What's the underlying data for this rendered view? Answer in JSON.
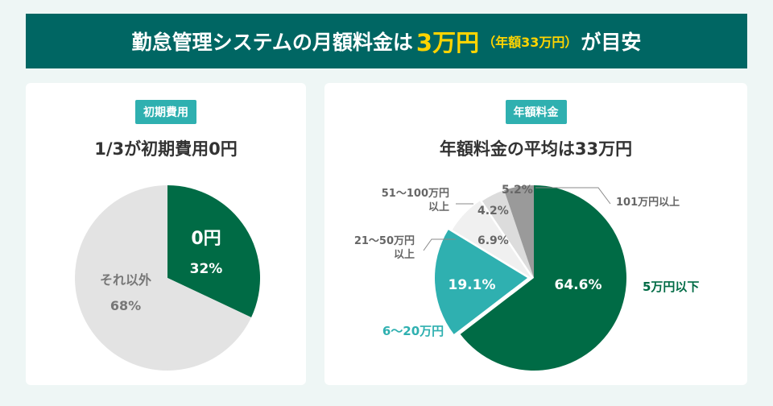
{
  "banner": {
    "pre": "勤怠管理システムの月額料金は",
    "highlight": "3万円",
    "sub": "（年額33万円）",
    "post": "が目安"
  },
  "colors": {
    "banner": "#006663",
    "badge": "#2fb0b0",
    "green": "#006b45",
    "teal": "#2fb0b0",
    "highlight": "#ffd400"
  },
  "chart_data": [
    {
      "type": "pie",
      "badge": "初期費用",
      "title": "1/3が初期費用0円",
      "slices": [
        {
          "label": "0円",
          "value": 32,
          "value_label": "32%",
          "color": "#006b45",
          "text_color": "#ffffff"
        },
        {
          "label": "それ以外",
          "value": 68,
          "value_label": "68%",
          "color": "#e3e3e3",
          "text_color": "#777777"
        }
      ]
    },
    {
      "type": "pie",
      "badge": "年額料金",
      "title": "年額料金の平均は33万円",
      "slices": [
        {
          "label": "5万円以下",
          "value": 64.6,
          "value_label": "64.6%",
          "color": "#006b45",
          "label_color": "#006b45"
        },
        {
          "label": "6～20万円",
          "value": 19.1,
          "value_label": "19.1%",
          "color": "#2fb0b0",
          "label_color": "#2fb0b0"
        },
        {
          "label": "21～50万円以上",
          "value": 6.9,
          "value_label": "6.9%",
          "color": "#f0f0f0",
          "label_color": "#666666"
        },
        {
          "label": "51～100万円以上",
          "value": 4.2,
          "value_label": "4.2%",
          "color": "#dcdcdc",
          "label_color": "#666666"
        },
        {
          "label": "101万円以上",
          "value": 5.2,
          "value_label": "5.2%",
          "color": "#9a9a9a",
          "label_color": "#666666"
        }
      ]
    }
  ]
}
